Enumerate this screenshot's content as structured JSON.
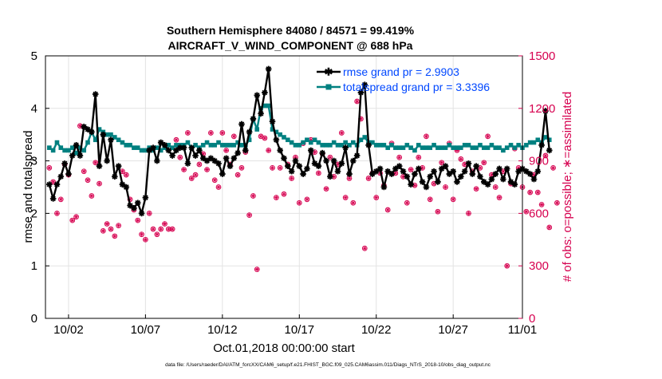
{
  "chart_data": {
    "type": "line",
    "title": "Southern Hemisphere 84080 / 84571 = 99.419%",
    "subtitle": "AIRCRAFT_V_WIND_COMPONENT @ 688 hPa",
    "xlabel": "Oct.01,2018 00:00:00 start",
    "ylabel_left": "rmse and totalspread",
    "ylabel_right": "# of obs: o=possible; ∗=assimilated",
    "footer": "data file: /Users/raeder/DAI/ATM_forcXX/CAM6_setup/f.e21.FHIST_BGC.f09_025.CAM6assim.011/Diags_NTrS_2018-10/obs_diag_output.nc",
    "xlim": [
      0.5,
      31.5
    ],
    "ylim_left": [
      0,
      5
    ],
    "ylim_right": [
      0,
      1500
    ],
    "x_ticks": [
      {
        "value": 2,
        "label": "10/02"
      },
      {
        "value": 7,
        "label": "10/07"
      },
      {
        "value": 12,
        "label": "10/12"
      },
      {
        "value": 17,
        "label": "10/17"
      },
      {
        "value": 22,
        "label": "10/22"
      },
      {
        "value": 27,
        "label": "10/27"
      },
      {
        "value": 32,
        "label": "11/01"
      }
    ],
    "y_ticks_left": [
      0,
      1,
      2,
      3,
      4,
      5
    ],
    "y_ticks_right": [
      0,
      300,
      600,
      900,
      1200,
      1500
    ],
    "grid": true,
    "legend_position": "top-right",
    "colors": {
      "rmse": "#000000",
      "spread": "#008080",
      "obs": "#d6004f",
      "legend_text": "#0047ff"
    },
    "series": [
      {
        "name": "rmse grand pr = 2.9903",
        "axis": "left",
        "t0": 0.75,
        "dt": 0.25,
        "values": [
          2.55,
          2.28,
          2.55,
          2.7,
          2.95,
          2.75,
          3.1,
          3.3,
          3.1,
          3.65,
          3.6,
          3.55,
          4.27,
          2.9,
          3.5,
          3.0,
          3.4,
          2.7,
          2.9,
          2.55,
          2.5,
          2.15,
          2.1,
          2.2,
          2.0,
          2.3,
          3.2,
          3.25,
          3.0,
          3.35,
          3.3,
          3.2,
          3.1,
          3.2,
          3.25,
          3.25,
          2.95,
          3.25,
          3.1,
          3.2,
          3.05,
          3.0,
          3.05,
          3.0,
          2.95,
          2.75,
          3.05,
          2.9,
          3.05,
          3.15,
          3.7,
          3.2,
          3.55,
          3.8,
          4.25,
          3.9,
          4.3,
          4.75,
          3.75,
          3.4,
          3.2,
          3.05,
          2.9,
          2.8,
          3.0,
          2.9,
          2.75,
          2.85,
          3.2,
          2.95,
          2.9,
          3.15,
          3.0,
          2.7,
          3.0,
          2.8,
          2.95,
          3.25,
          2.75,
          3.0,
          3.1,
          4.3,
          4.45,
          3.3,
          2.75,
          2.8,
          2.85,
          2.5,
          2.8,
          2.75,
          2.85,
          2.9,
          2.8,
          2.7,
          2.55,
          2.75,
          2.85,
          2.6,
          2.5,
          2.7,
          2.8,
          2.6,
          2.85,
          2.9,
          2.75,
          2.8,
          2.6,
          2.7,
          2.8,
          2.95,
          2.75,
          2.9,
          2.7,
          2.6,
          2.55,
          2.65,
          2.75,
          2.85,
          2.65,
          2.85,
          2.6,
          2.55,
          2.8,
          2.85,
          2.8,
          2.75,
          2.65,
          2.8,
          3.3,
          3.95,
          3.2
        ]
      },
      {
        "name": "totalspread grand pr = 3.3396",
        "axis": "left",
        "t0": 0.75,
        "dt": 0.25,
        "values": [
          3.25,
          3.2,
          3.35,
          3.25,
          3.2,
          3.2,
          3.25,
          3.15,
          3.25,
          3.2,
          3.35,
          3.55,
          3.4,
          3.6,
          3.55,
          3.5,
          3.5,
          3.45,
          3.4,
          3.35,
          3.3,
          3.3,
          3.25,
          3.25,
          3.2,
          3.2,
          3.25,
          3.2,
          3.25,
          3.2,
          3.25,
          3.3,
          3.25,
          3.3,
          3.3,
          3.3,
          3.35,
          3.25,
          3.3,
          3.25,
          3.3,
          3.35,
          3.3,
          3.3,
          3.35,
          3.3,
          3.3,
          3.3,
          3.3,
          3.35,
          3.3,
          3.3,
          3.4,
          3.8,
          3.6,
          4.0,
          4.05,
          4.05,
          3.6,
          3.55,
          3.5,
          3.45,
          3.4,
          3.35,
          3.3,
          3.3,
          3.35,
          3.4,
          3.35,
          3.4,
          3.35,
          3.3,
          3.3,
          3.3,
          3.35,
          3.3,
          3.3,
          3.35,
          3.3,
          3.35,
          3.3,
          3.4,
          3.45,
          3.35,
          3.35,
          3.3,
          3.3,
          3.3,
          3.25,
          3.3,
          3.25,
          3.25,
          3.25,
          3.3,
          3.25,
          3.2,
          3.3,
          3.25,
          3.25,
          3.25,
          3.3,
          3.25,
          3.25,
          3.25,
          3.3,
          3.25,
          3.25,
          3.25,
          3.3,
          3.3,
          3.25,
          3.25,
          3.3,
          3.25,
          3.25,
          3.3,
          3.25,
          3.25,
          3.2,
          3.25,
          3.3,
          3.25,
          3.3,
          3.25,
          3.3,
          3.35,
          3.35,
          3.4,
          3.35,
          3.45,
          3.4
        ]
      },
      {
        "name": "# of obs",
        "axis": "right",
        "marker": "o*",
        "t0": 0.75,
        "dt": 0.25,
        "values": [
          860,
          780,
          600,
          680,
          880,
          820,
          560,
          580,
          1100,
          840,
          790,
          700,
          890,
          770,
          500,
          540,
          510,
          470,
          530,
          840,
          820,
          680,
          620,
          560,
          480,
          450,
          600,
          510,
          480,
          510,
          540,
          510,
          510,
          1020,
          920,
          850,
          1060,
          800,
          820,
          880,
          940,
          850,
          1060,
          790,
          750,
          1060,
          960,
          880,
          1040,
          820,
          860,
          950,
          590,
          700,
          280,
          1040,
          1030,
          960,
          860,
          690,
          860,
          710,
          880,
          800,
          920,
          660,
          1000,
          680,
          1020,
          950,
          830,
          940,
          740,
          920,
          810,
          880,
          1060,
          690,
          800,
          660,
          1240,
          1140,
          400,
          800,
          830,
          690,
          830,
          760,
          620,
          1000,
          830,
          920,
          810,
          660,
          850,
          760,
          920,
          860,
          1040,
          680,
          770,
          610,
          890,
          750,
          1000,
          680,
          960,
          910,
          880,
          600,
          840,
          740,
          860,
          890,
          1040,
          820,
          750,
          690,
          840,
          300,
          770,
          970,
          860,
          750,
          610,
          720,
          820,
          720,
          650,
          930,
          520,
          860,
          660
        ]
      }
    ]
  }
}
